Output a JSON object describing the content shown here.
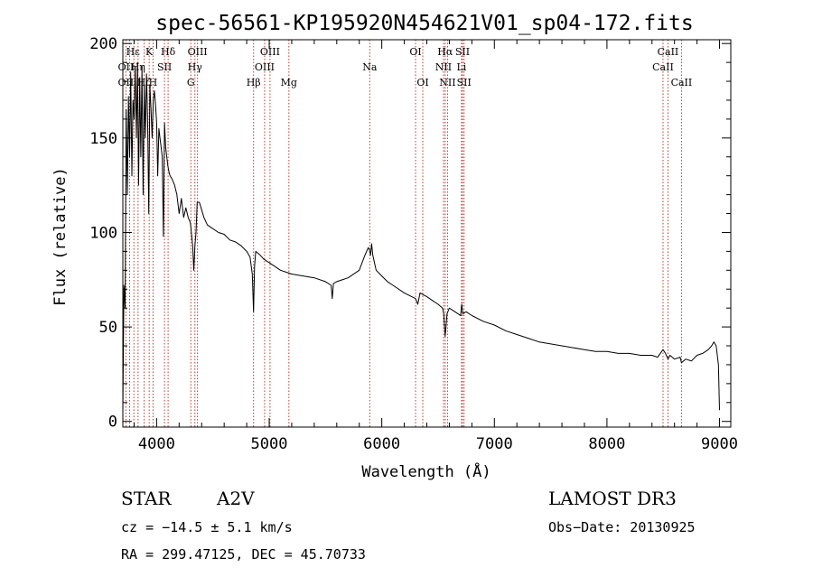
{
  "chart_data": {
    "type": "line",
    "title": "spec-56561-KP195920N454621V01_sp04-172.fits",
    "xlabel": "Wavelength (Å)",
    "ylabel": "Flux (relative)",
    "xlim": [
      3700,
      9100
    ],
    "ylim": [
      -3,
      202
    ],
    "xticks": [
      4000,
      5000,
      6000,
      7000,
      8000,
      9000
    ],
    "yticks": [
      0,
      50,
      100,
      150,
      200
    ],
    "series": [
      {
        "name": "spectrum",
        "x": [
          3700,
          3710,
          3720,
          3730,
          3740,
          3750,
          3760,
          3770,
          3780,
          3790,
          3800,
          3810,
          3820,
          3830,
          3840,
          3850,
          3860,
          3870,
          3880,
          3890,
          3900,
          3910,
          3920,
          3930,
          3940,
          3950,
          3960,
          3970,
          3980,
          3990,
          4000,
          4010,
          4020,
          4030,
          4040,
          4050,
          4060,
          4070,
          4080,
          4090,
          4100,
          4110,
          4120,
          4140,
          4160,
          4180,
          4200,
          4220,
          4240,
          4260,
          4280,
          4300,
          4320,
          4330,
          4340,
          4350,
          4360,
          4380,
          4400,
          4420,
          4450,
          4500,
          4550,
          4600,
          4650,
          4700,
          4750,
          4800,
          4830,
          4850,
          4861,
          4870,
          4880,
          4900,
          4920,
          4950,
          5000,
          5050,
          5100,
          5150,
          5200,
          5300,
          5400,
          5500,
          5550,
          5560,
          5570,
          5600,
          5700,
          5800,
          5850,
          5880,
          5890,
          5900,
          5910,
          5920,
          5950,
          6000,
          6050,
          6100,
          6200,
          6300,
          6320,
          6340,
          6400,
          6450,
          6500,
          6540,
          6550,
          6563,
          6570,
          6580,
          6600,
          6650,
          6700,
          6710,
          6720,
          6750,
          6800,
          6900,
          7000,
          7100,
          7200,
          7300,
          7400,
          7500,
          7600,
          7700,
          7800,
          7900,
          8000,
          8100,
          8200,
          8300,
          8400,
          8450,
          8498,
          8520,
          8542,
          8560,
          8600,
          8650,
          8662,
          8700,
          8750,
          8800,
          8850,
          8900,
          8930,
          8950,
          8970,
          8990,
          9000
        ],
        "y": [
          5,
          72,
          60,
          165,
          120,
          172,
          140,
          185,
          130,
          170,
          160,
          188,
          150,
          190,
          125,
          182,
          140,
          188,
          120,
          178,
          150,
          184,
          160,
          110,
          178,
          165,
          150,
          170,
          175,
          168,
          158,
          130,
          155,
          150,
          145,
          140,
          98,
          158,
          145,
          140,
          135,
          132,
          130,
          128,
          125,
          120,
          110,
          118,
          108,
          113,
          108,
          105,
          93,
          80,
          93,
          100,
          116,
          116,
          112,
          108,
          104,
          102,
          100,
          99,
          96,
          95,
          93,
          90,
          87,
          78,
          58,
          82,
          90,
          89,
          88,
          86,
          84,
          82,
          80,
          79,
          78,
          77,
          76,
          74,
          72,
          65,
          73,
          74,
          76,
          80,
          88,
          92,
          91,
          88,
          94,
          88,
          80,
          77,
          74,
          72,
          68,
          65,
          62,
          68,
          66,
          64,
          62,
          60,
          57,
          45,
          50,
          57,
          60,
          58,
          56,
          62,
          57,
          58,
          56,
          53,
          51,
          48,
          46,
          44,
          42,
          41,
          40,
          39,
          38,
          37,
          37,
          36,
          36,
          35,
          35,
          34,
          38,
          36,
          33,
          35,
          33,
          34,
          31,
          33,
          32,
          35,
          36,
          38,
          40,
          42,
          40,
          30,
          6
        ]
      }
    ],
    "spectral_lines": [
      {
        "label": "Hε",
        "x": 3790,
        "row": 1
      },
      {
        "label": "K",
        "x": 3934,
        "row": 1
      },
      {
        "label": "Hδ",
        "x": 4102,
        "row": 1
      },
      {
        "label": "OIII",
        "x": 4363,
        "row": 1
      },
      {
        "label": "OIII",
        "x": 5007,
        "row": 1
      },
      {
        "label": "OI",
        "x": 6300,
        "row": 1
      },
      {
        "label": "Hα",
        "x": 6563,
        "row": 1
      },
      {
        "label": "SII",
        "x": 6717,
        "row": 1
      },
      {
        "label": "CaII",
        "x": 8542,
        "row": 1
      },
      {
        "label": "OII",
        "x": 3727,
        "row": 2
      },
      {
        "label": "Hη",
        "x": 3835,
        "row": 2
      },
      {
        "label": "SII",
        "x": 4070,
        "row": 2
      },
      {
        "label": "Hγ",
        "x": 4340,
        "row": 2
      },
      {
        "label": "OIII",
        "x": 4959,
        "row": 2
      },
      {
        "label": "Na",
        "x": 5893,
        "row": 2
      },
      {
        "label": "NII",
        "x": 6548,
        "row": 2
      },
      {
        "label": "Li",
        "x": 6708,
        "row": 2
      },
      {
        "label": "CaII",
        "x": 8498,
        "row": 2
      },
      {
        "label": "OII",
        "x": 3727,
        "row": 3
      },
      {
        "label": "Hζ",
        "x": 3889,
        "row": 3
      },
      {
        "label": "H",
        "x": 3968,
        "row": 3
      },
      {
        "label": "G",
        "x": 4304,
        "row": 3
      },
      {
        "label": "Hβ",
        "x": 4861,
        "row": 3
      },
      {
        "label": "Mg",
        "x": 5175,
        "row": 3
      },
      {
        "label": "OI",
        "x": 6364,
        "row": 3
      },
      {
        "label": "NII",
        "x": 6584,
        "row": 3
      },
      {
        "label": "SII",
        "x": 6731,
        "row": 3
      },
      {
        "label": "CaII",
        "x": 8662,
        "row": 3
      }
    ],
    "marker_lines_x": [
      3727,
      3760,
      3798,
      3835,
      3889,
      3934,
      3968,
      4070,
      4102,
      4304,
      4340,
      4363,
      4861,
      4959,
      5007,
      5175,
      5893,
      6300,
      6364,
      6548,
      6563,
      6584,
      6708,
      6717,
      6731,
      8498,
      8542,
      8662
    ]
  },
  "info": {
    "object_class": "STAR",
    "subclass": "A2V",
    "survey": "LAMOST DR3",
    "cz": "cz = −14.5 ± 5.1 km/s",
    "obs_date": "Obs−Date: 20130925",
    "coords": "RA = 299.47125, DEC =  45.70733"
  }
}
